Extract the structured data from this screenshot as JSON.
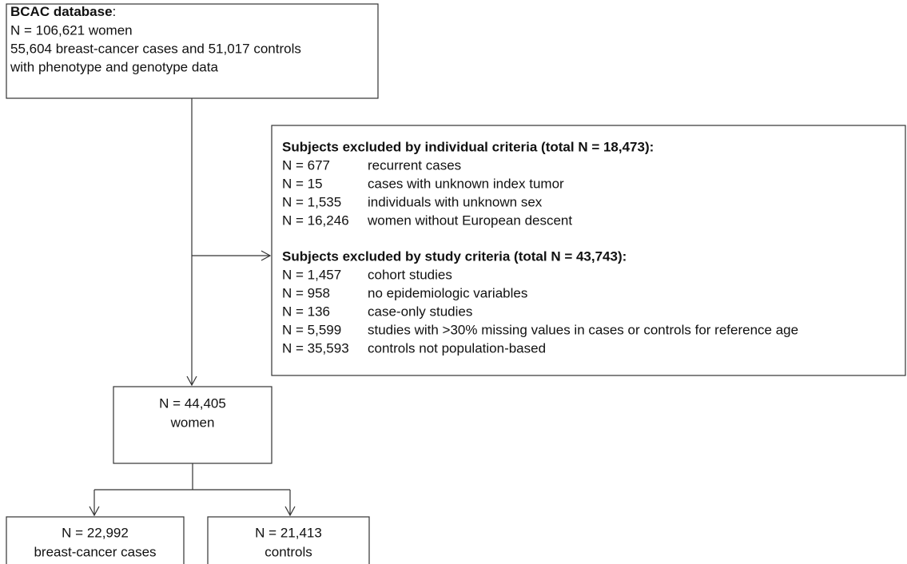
{
  "top_box": {
    "title": "BCAC database",
    "title_suffix": ":",
    "lines": [
      "N = 106,621 women",
      "55,604 breast-cancer cases and 51,017 controls",
      "with phenotype and genotype data"
    ]
  },
  "exclusions": {
    "groups": [
      {
        "heading": "Subjects excluded by individual criteria (total N = 18,473):",
        "rows": [
          {
            "n": "N = 677",
            "reason": "recurrent cases"
          },
          {
            "n": "N = 15",
            "reason": "cases with unknown index tumor"
          },
          {
            "n": "N = 1,535",
            "reason": "individuals with unknown sex"
          },
          {
            "n": "N = 16,246",
            "reason": "women without European descent"
          }
        ]
      },
      {
        "heading": "Subjects excluded by study criteria (total N = 43,743):",
        "rows": [
          {
            "n": "N = 1,457",
            "reason": "cohort studies"
          },
          {
            "n": "N = 958",
            "reason": "no epidemiologic variables"
          },
          {
            "n": "N = 136",
            "reason": "case-only studies"
          },
          {
            "n": "N = 5,599",
            "reason": "studies with >30% missing values in cases or controls for reference age"
          },
          {
            "n": "N = 35,593",
            "reason": "controls not population-based"
          }
        ]
      }
    ]
  },
  "result_box": {
    "lines": [
      "N = 44,405",
      "women"
    ]
  },
  "outcomes": [
    {
      "lines": [
        "N = 22,992",
        "breast-cancer cases"
      ]
    },
    {
      "lines": [
        "N = 21,413",
        "controls"
      ]
    }
  ]
}
